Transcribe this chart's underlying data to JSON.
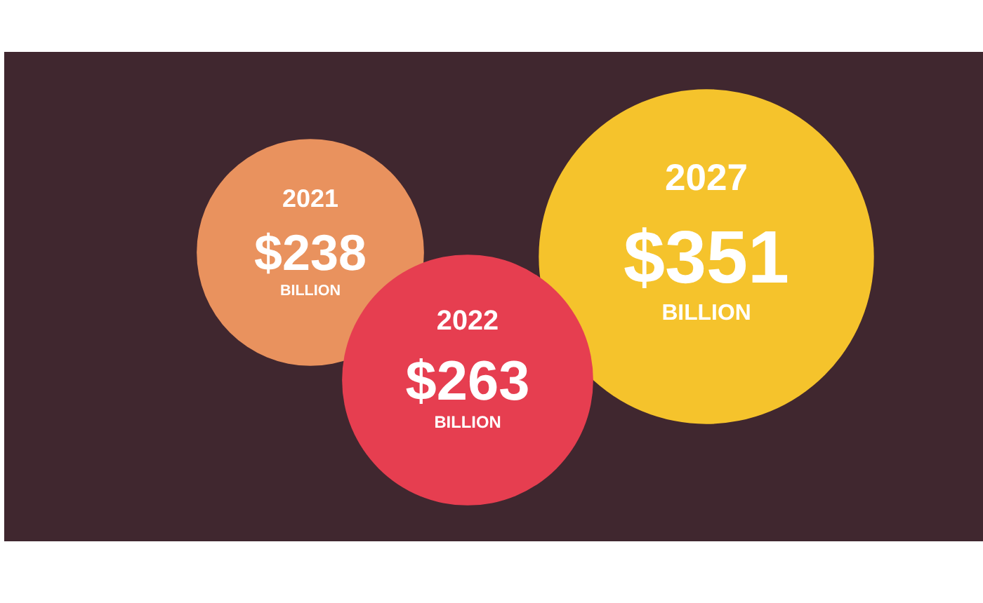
{
  "chart_data": {
    "type": "other",
    "categories": [
      "2021",
      "2022",
      "2027"
    ],
    "values": [
      238,
      263,
      351
    ],
    "value_labels": [
      "$238",
      "$263",
      "$351"
    ],
    "colors": [
      "#e9925e",
      "#e63e50",
      "#f5c32c"
    ],
    "annotations": [
      "BILLION",
      "BILLION",
      "BILLION"
    ]
  }
}
